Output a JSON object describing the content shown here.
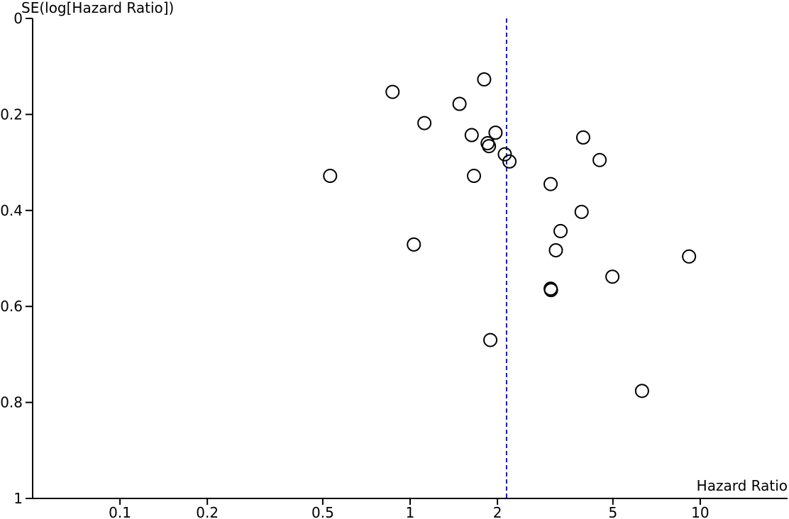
{
  "chart_data": {
    "type": "scatter",
    "xlabel": "Hazard Ratio",
    "ylabel": "SE(log[Hazard Ratio])",
    "x_scale": "log",
    "y_inverted": true,
    "xlim": [
      0.05,
      20
    ],
    "ylim": [
      0,
      1
    ],
    "x_ticks": [
      "0.1",
      "0.2",
      "0.5",
      "1",
      "2",
      "5",
      "10"
    ],
    "y_ticks": [
      "0",
      "0.2",
      "0.4",
      "0.6",
      "0.8",
      "1"
    ],
    "reference_line": {
      "x": 2.15,
      "style": "dashed",
      "color": "#1a1ab0"
    },
    "marker_color": "#000000",
    "points": [
      {
        "x": 0.87,
        "y": 0.153
      },
      {
        "x": 1.8,
        "y": 0.127
      },
      {
        "x": 1.48,
        "y": 0.178
      },
      {
        "x": 1.12,
        "y": 0.218
      },
      {
        "x": 1.63,
        "y": 0.243
      },
      {
        "x": 1.97,
        "y": 0.238
      },
      {
        "x": 1.85,
        "y": 0.26
      },
      {
        "x": 1.87,
        "y": 0.266
      },
      {
        "x": 2.12,
        "y": 0.283
      },
      {
        "x": 2.2,
        "y": 0.298
      },
      {
        "x": 0.53,
        "y": 0.328
      },
      {
        "x": 1.66,
        "y": 0.328
      },
      {
        "x": 3.95,
        "y": 0.248
      },
      {
        "x": 4.5,
        "y": 0.295
      },
      {
        "x": 3.05,
        "y": 0.345
      },
      {
        "x": 3.9,
        "y": 0.403
      },
      {
        "x": 3.3,
        "y": 0.443
      },
      {
        "x": 3.18,
        "y": 0.483
      },
      {
        "x": 1.03,
        "y": 0.471
      },
      {
        "x": 9.15,
        "y": 0.496
      },
      {
        "x": 4.98,
        "y": 0.538
      },
      {
        "x": 3.05,
        "y": 0.563
      },
      {
        "x": 3.06,
        "y": 0.566
      },
      {
        "x": 1.89,
        "y": 0.67
      },
      {
        "x": 6.3,
        "y": 0.776
      }
    ]
  }
}
